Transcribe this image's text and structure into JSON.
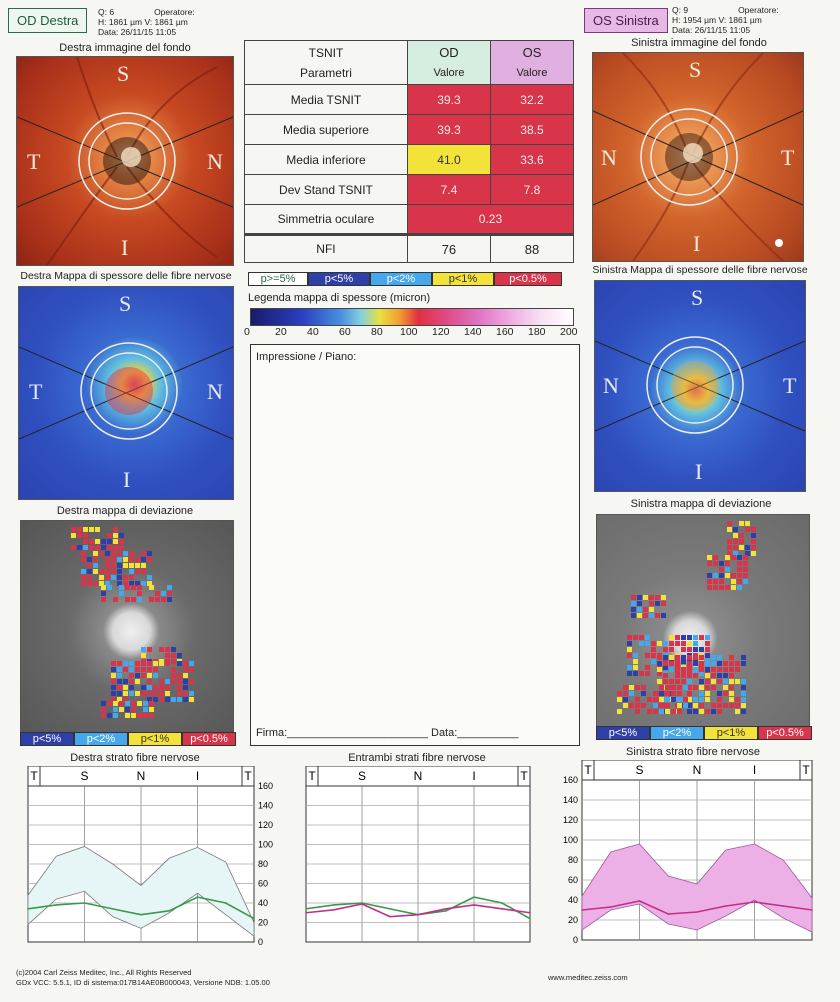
{
  "od": {
    "tag": "OD  Destra",
    "q": "Q: 6",
    "operator": "Operatore:",
    "hv": "H: 1861 µm  V: 1861 µm",
    "date": "Data: 26/11/15 11:05",
    "fundus_caption": "Destra immagine del fondo",
    "thickness_caption": "Destra Mappa di spessore delle fibre nervose",
    "deviation_caption": "Destra mappa di deviazione",
    "strata_caption": "Destra strato fibre nervose"
  },
  "os": {
    "tag": "OS  Sinistra",
    "q": "Q: 9",
    "operator": "Operatore:",
    "hv": "H: 1954 µm  V: 1861 µm",
    "date": "Data: 26/11/15 11:05",
    "fundus_caption": "Sinistra immagine del fondo",
    "thickness_caption": "Sinistra Mappa di spessore delle fibre nervose",
    "deviation_caption": "Sinistra mappa di deviazione",
    "strata_caption": "Sinistra strato fibre nervose"
  },
  "quadrant_labels": {
    "s": "S",
    "i": "I",
    "t": "T",
    "n": "N"
  },
  "params": {
    "header_1": "TSNIT",
    "header_2": "Parametri",
    "od_header": "OD",
    "os_header": "OS",
    "value_label": "Valore",
    "rows": [
      {
        "label": "Media TSNIT",
        "od": "39.3",
        "os": "32.2",
        "od_color": "red",
        "os_color": "red"
      },
      {
        "label": "Media superiore",
        "od": "39.3",
        "os": "38.5",
        "od_color": "red",
        "os_color": "red"
      },
      {
        "label": "Media inferiore",
        "od": "41.0",
        "os": "33.6",
        "od_color": "yellow",
        "os_color": "red"
      },
      {
        "label": "Dev Stand TSNIT",
        "od": "7.4",
        "os": "7.8",
        "od_color": "red",
        "os_color": "red"
      }
    ],
    "symmetry_label": "Simmetria oculare",
    "symmetry_value": "0.23",
    "nfi_label": "NFI",
    "nfi_od": "76",
    "nfi_os": "88"
  },
  "probability_legend": [
    "p>=5%",
    "p<5%",
    "p<2%",
    "p<1%",
    "p<0.5%"
  ],
  "deviation_legend": [
    "p<5%",
    "p<2%",
    "p<1%",
    "p<0.5%"
  ],
  "legend_colors": {
    "p5": "#2f3fa8",
    "p2": "#45a8ec",
    "p1": "#f3e23a",
    "p05": "#d8344a"
  },
  "thickness_legend": {
    "title": "Legenda mappa di spessore (micron)",
    "ticks": [
      "0",
      "20",
      "40",
      "60",
      "80",
      "100",
      "120",
      "140",
      "160",
      "180",
      "200"
    ]
  },
  "notes": {
    "title": "Impressione / Piano:",
    "signature": "Firma:_______________________",
    "date": "Data:__________"
  },
  "combined_caption": "Entrambi strati fibre nervose",
  "footer": {
    "copyright": "(c)2004 Carl Zeiss Meditec, Inc., All Rights Reserved",
    "version": "GDx VCC: 5.5.1, ID di sistema:017B14AE0B000043, Versione NDB: 1.05.00",
    "url": "www.meditec.zeiss.com"
  },
  "chart_data": [
    {
      "type": "line",
      "title": "Destra strato fibre nervose",
      "categories": [
        "T",
        "S",
        "N",
        "I",
        "T"
      ],
      "x": [
        0,
        8,
        16,
        24,
        32,
        40,
        48,
        56,
        64
      ],
      "ylim": [
        0,
        160
      ],
      "yticks": [
        "160",
        "140",
        "120",
        "100",
        "80",
        "60",
        "40",
        "20",
        "0"
      ],
      "normal_upper": [
        48,
        88,
        98,
        80,
        58,
        86,
        97,
        82,
        20
      ],
      "normal_lower": [
        18,
        44,
        52,
        26,
        14,
        30,
        50,
        28,
        6
      ],
      "series": [
        {
          "color": "#3a9a4a",
          "values": [
            34,
            38,
            40,
            34,
            28,
            32,
            46,
            40,
            24
          ]
        }
      ]
    },
    {
      "type": "line",
      "title": "Entrambi strati fibre nervose",
      "categories": [
        "T",
        "S",
        "N",
        "I",
        "T"
      ],
      "x": [
        0,
        8,
        16,
        24,
        32,
        40,
        48,
        56,
        64
      ],
      "ylim": [
        0,
        160
      ],
      "series": [
        {
          "color": "#3a9a4a",
          "values": [
            34,
            38,
            40,
            34,
            28,
            32,
            46,
            40,
            24
          ]
        },
        {
          "color": "#c0308a",
          "values": [
            30,
            33,
            39,
            26,
            28,
            34,
            38,
            34,
            30
          ]
        }
      ]
    },
    {
      "type": "line",
      "title": "Sinistra strato fibre nervose",
      "categories": [
        "T",
        "S",
        "N",
        "I",
        "T"
      ],
      "x": [
        0,
        8,
        16,
        24,
        32,
        40,
        48,
        56,
        64
      ],
      "ylim": [
        0,
        160
      ],
      "yticks": [
        "160",
        "140",
        "120",
        "100",
        "80",
        "60",
        "40",
        "20",
        "0"
      ],
      "normal_upper": [
        44,
        88,
        96,
        64,
        56,
        90,
        96,
        80,
        42
      ],
      "normal_lower": [
        10,
        30,
        36,
        16,
        10,
        24,
        40,
        22,
        8
      ],
      "series": [
        {
          "color": "#c0308a",
          "values": [
            30,
            33,
            39,
            26,
            28,
            34,
            38,
            34,
            30
          ]
        }
      ]
    }
  ]
}
